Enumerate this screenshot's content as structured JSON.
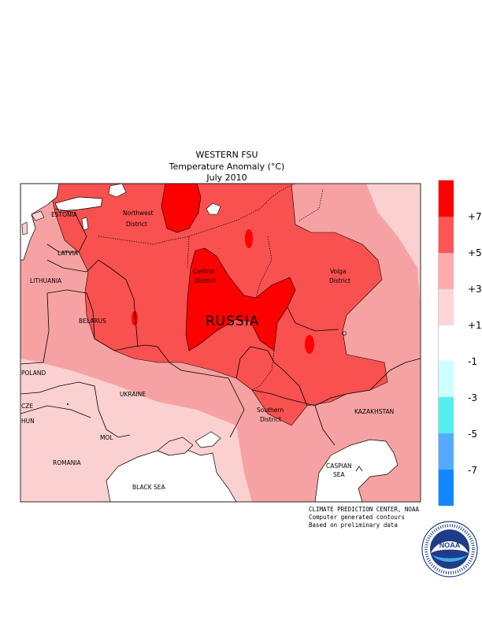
{
  "header": {
    "line1": "WESTERN FSU",
    "line2": "Temperature Anomaly (°C)",
    "line3": "July 2010"
  },
  "labels": {
    "estonia": "ESTONIA",
    "latvia": "LATVIA",
    "lithuania": "LITHUANIA",
    "belarus": "BELARUS",
    "poland": "POLAND",
    "czech": "CZE",
    "hungary": "HUN",
    "ukraine": "UKRAINE",
    "moldova": "MOL",
    "romania": "ROMANIA",
    "black_sea": "BLACK SEA",
    "northwest1": "Northwest",
    "northwest2": "District",
    "central1": "Central",
    "central2": "District",
    "volga1": "Volga",
    "volga2": "District",
    "southern1": "Southern",
    "southern2": "District",
    "russia": "RUSSIA",
    "kazakhstan": "KAZAKHSTAN",
    "caspian1": "CASPIAN",
    "caspian2": "SEA"
  },
  "credits": {
    "line1": "CLIMATE PREDICTION CENTER, NOAA",
    "line2": "Computer generated contours",
    "line3": "Based on preliminary data"
  },
  "legend": {
    "ticks": [
      "+7",
      "+5",
      "+3",
      "+1",
      "-1",
      "-3",
      "-5",
      "-7"
    ],
    "colors": [
      "#ff0000",
      "#ff5555",
      "#ffaaaa",
      "#ffd5d5",
      "#ffffff",
      "#ccffff",
      "#55eeee",
      "#55aaff",
      "#1188ff"
    ]
  },
  "logo": {
    "text": "NOAA"
  },
  "colors": {
    "above_7": "#ff0000",
    "5_to_7": "#f95050",
    "3_to_5": "#f6a2a2",
    "1_to_3": "#fad0d0"
  }
}
